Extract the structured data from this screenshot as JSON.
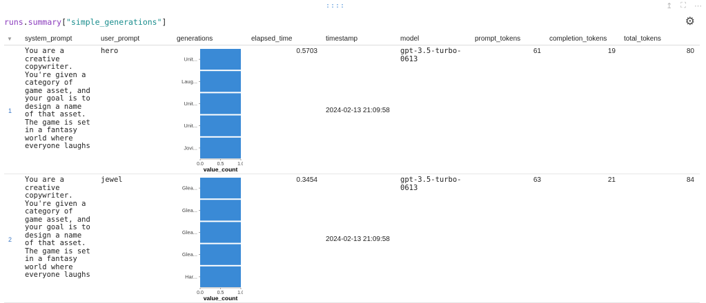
{
  "toolbar": {
    "drag_handle": "::::",
    "icons": [
      "share-icon",
      "expand-icon",
      "more-icon"
    ]
  },
  "code": {
    "var": "runs",
    "dot": ".",
    "attr": "summary",
    "open": "[",
    "key": "\"simple_generations\"",
    "close": "]"
  },
  "settings_icon": "gear-icon",
  "columns": [
    "system_prompt",
    "user_prompt",
    "generations",
    "elapsed_time",
    "timestamp",
    "model",
    "prompt_tokens",
    "completion_tokens",
    "total_tokens"
  ],
  "rows": [
    {
      "index": "1",
      "system_prompt": "You are a\ncreative\ncopywriter.\nYou're given a\ncategory of\ngame asset, and\nyour goal is to\ndesign a name\nof that asset.\nThe game is set\nin a fantasy\nworld where\neveryone laughs",
      "user_prompt": "hero",
      "elapsed_time": "0.5703",
      "timestamp": "2024-02-13 21:09:58",
      "model": "gpt-3.5-turbo-\n0613",
      "prompt_tokens": "61",
      "completion_tokens": "19",
      "total_tokens": "80"
    },
    {
      "index": "2",
      "system_prompt": "You are a\ncreative\ncopywriter.\nYou're given a\ncategory of\ngame asset, and\nyour goal is to\ndesign a name\nof that asset.\nThe game is set\nin a fantasy\nworld where\neveryone laughs",
      "user_prompt": "jewel",
      "elapsed_time": "0.3454",
      "timestamp": "2024-02-13 21:09:58",
      "model": "gpt-3.5-turbo-\n0613",
      "prompt_tokens": "63",
      "completion_tokens": "21",
      "total_tokens": "84"
    }
  ],
  "chart_data": [
    {
      "type": "bar",
      "orientation": "horizontal",
      "categories": [
        "Unit...",
        "Laug...",
        "Unit...",
        "Unit...",
        "Jovi..."
      ],
      "values": [
        1.0,
        1.0,
        1.0,
        1.0,
        1.0
      ],
      "xlabel": "value_count",
      "xticks": [
        "0.0",
        "0.5",
        "1.0"
      ],
      "xlim": [
        0,
        1
      ],
      "color": "#3a8ad6"
    },
    {
      "type": "bar",
      "orientation": "horizontal",
      "categories": [
        "Glea...",
        "Glea...",
        "Glea...",
        "Glea...",
        "Har..."
      ],
      "values": [
        1.0,
        1.0,
        1.0,
        1.0,
        1.0
      ],
      "xlabel": "value_count",
      "xticks": [
        "0.0",
        "0.5",
        "1.0"
      ],
      "xlim": [
        0,
        1
      ],
      "color": "#3a8ad6"
    }
  ]
}
